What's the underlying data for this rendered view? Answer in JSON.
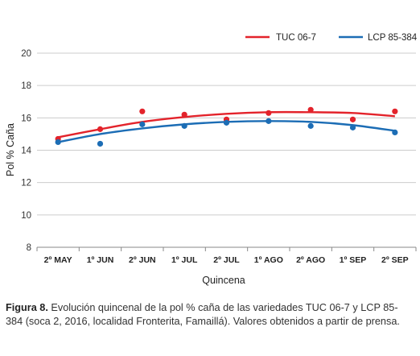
{
  "chart_data": {
    "type": "scatter",
    "xlabel": "Quincena",
    "ylabel": "Pol % Caña",
    "ylim": [
      8,
      20
    ],
    "yticks": [
      8,
      10,
      12,
      14,
      16,
      18,
      20
    ],
    "categories": [
      "2º MAY",
      "1º JUN",
      "2º JUN",
      "1º JUL",
      "2º JUL",
      "1º AGO",
      "2º AGO",
      "1º SEP",
      "2º SEP"
    ],
    "grid": true,
    "legend": "top-right",
    "series": [
      {
        "name": "TUC 06-7",
        "color": "#e3232b",
        "values": [
          14.7,
          15.3,
          16.4,
          16.2,
          15.9,
          16.3,
          16.5,
          15.9,
          16.4
        ],
        "trend": [
          14.8,
          15.3,
          15.75,
          16.05,
          16.25,
          16.35,
          16.35,
          16.3,
          16.1
        ]
      },
      {
        "name": "LCP 85-384",
        "color": "#1c6db5",
        "values": [
          14.5,
          14.4,
          15.6,
          15.5,
          15.7,
          15.8,
          15.5,
          15.4,
          15.1
        ],
        "trend": [
          14.5,
          15.0,
          15.35,
          15.6,
          15.75,
          15.8,
          15.75,
          15.55,
          15.2
        ]
      }
    ]
  },
  "caption": {
    "label": "Figura 8.",
    "text": " Evolución quincenal de la pol % caña de las variedades TUC 06-7 y LCP 85-384  (soca 2, 2016,  localidad Fronterita, Famaillá). Valores obtenidos a partir de prensa."
  }
}
